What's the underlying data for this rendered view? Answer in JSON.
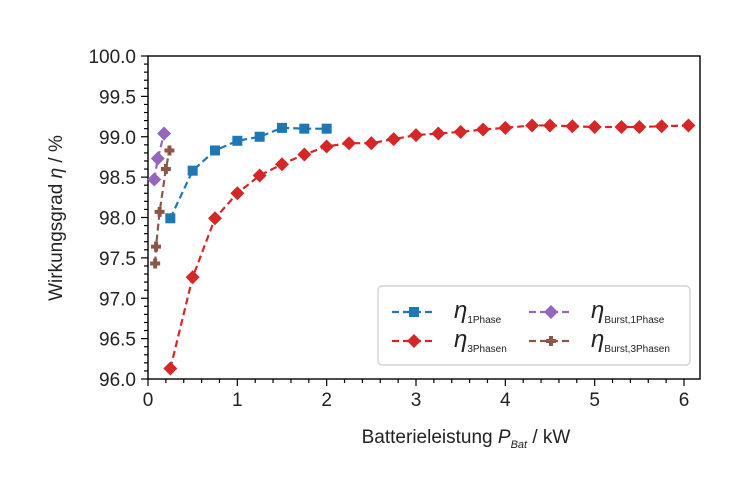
{
  "chart_data": {
    "type": "line",
    "xlabel": {
      "main": "Batterieleistung ",
      "symbol": "P",
      "sub": "Bat",
      "unit": " / kW"
    },
    "ylabel": {
      "main": "Wirkungsgrad ",
      "symbol": "η",
      "unit": " / %"
    },
    "xlim": [
      0,
      6.2
    ],
    "ylim": [
      96.0,
      100.0
    ],
    "xticks": [
      0,
      1,
      2,
      3,
      4,
      5,
      6
    ],
    "xtick_labels": [
      "0",
      "1",
      "2",
      "3",
      "4",
      "5",
      "6"
    ],
    "yticks": [
      96.0,
      96.5,
      97.0,
      97.5,
      98.0,
      98.5,
      99.0,
      99.5,
      100.0
    ],
    "ytick_labels": [
      "96.0",
      "96.5",
      "97.0",
      "97.5",
      "98.0",
      "98.5",
      "99.0",
      "99.5",
      "100.0"
    ],
    "grid": false,
    "legend_position": "lower-right",
    "series": [
      {
        "name": "1Phase",
        "legend_symbol": "η",
        "legend_sub": "1Phase",
        "color": "#1f77b4",
        "marker": "square",
        "x": [
          0.25,
          0.5,
          0.75,
          1.0,
          1.25,
          1.5,
          1.75,
          2.0
        ],
        "y": [
          97.99,
          98.58,
          98.83,
          98.95,
          99.0,
          99.11,
          99.1,
          99.1
        ]
      },
      {
        "name": "3Phasen",
        "legend_symbol": "η",
        "legend_sub": "3Phasen",
        "color": "#d62728",
        "marker": "diamond",
        "x": [
          0.25,
          0.5,
          0.75,
          1.0,
          1.25,
          1.5,
          1.75,
          2.0,
          2.25,
          2.5,
          2.75,
          3.0,
          3.25,
          3.5,
          3.75,
          4.0,
          4.3,
          4.5,
          4.75,
          5.0,
          5.3,
          5.5,
          5.75,
          6.05
        ],
        "y": [
          96.13,
          97.26,
          97.99,
          98.3,
          98.52,
          98.66,
          98.78,
          98.88,
          98.92,
          98.92,
          98.97,
          99.02,
          99.04,
          99.06,
          99.09,
          99.11,
          99.14,
          99.14,
          99.13,
          99.12,
          99.12,
          99.12,
          99.13,
          99.14
        ]
      },
      {
        "name": "Burst,1Phase",
        "legend_symbol": "η",
        "legend_sub": "Burst,1Phase",
        "color": "#9467bd",
        "marker": "diamond",
        "x": [
          0.07,
          0.11,
          0.18
        ],
        "y": [
          98.47,
          98.73,
          99.04
        ]
      },
      {
        "name": "Burst,3Phasen",
        "legend_symbol": "η",
        "legend_sub": "Burst,3Phasen",
        "color": "#8c564b",
        "marker": "plus",
        "x": [
          0.08,
          0.09,
          0.13,
          0.2,
          0.24
        ],
        "y": [
          97.43,
          97.64,
          98.07,
          98.6,
          98.83
        ]
      }
    ]
  }
}
